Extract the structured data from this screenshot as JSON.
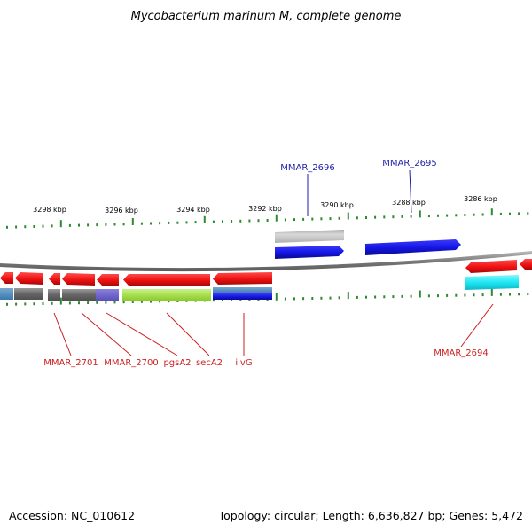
{
  "title": "Mycobacterium marinum M, complete genome",
  "footer": {
    "accession": "Accession: NC_010612",
    "summary": "Topology: circular; Length: 6,636,827 bp; Genes: 5,472"
  },
  "colors": {
    "backbone": "#8a8a8a",
    "tick": "#2f8a2f",
    "forward_gene": "#1414e0",
    "reverse_gene": "#ee1111",
    "label_forward": "#1e1ea8",
    "label_reverse": "#cc1f1f"
  },
  "scale_labels": [
    "3298 kbp",
    "3296 kbp",
    "3294 kbp",
    "3292 kbp",
    "3290 kbp",
    "3288 kbp",
    "3286 kbp"
  ],
  "gene_labels": {
    "forward": [
      "MMAR_2696",
      "MMAR_2695"
    ],
    "reverse": [
      "MMAR_2701",
      "MMAR_2700",
      "pgsA2",
      "secA2",
      "ilvG",
      "MMAR_2694"
    ]
  }
}
